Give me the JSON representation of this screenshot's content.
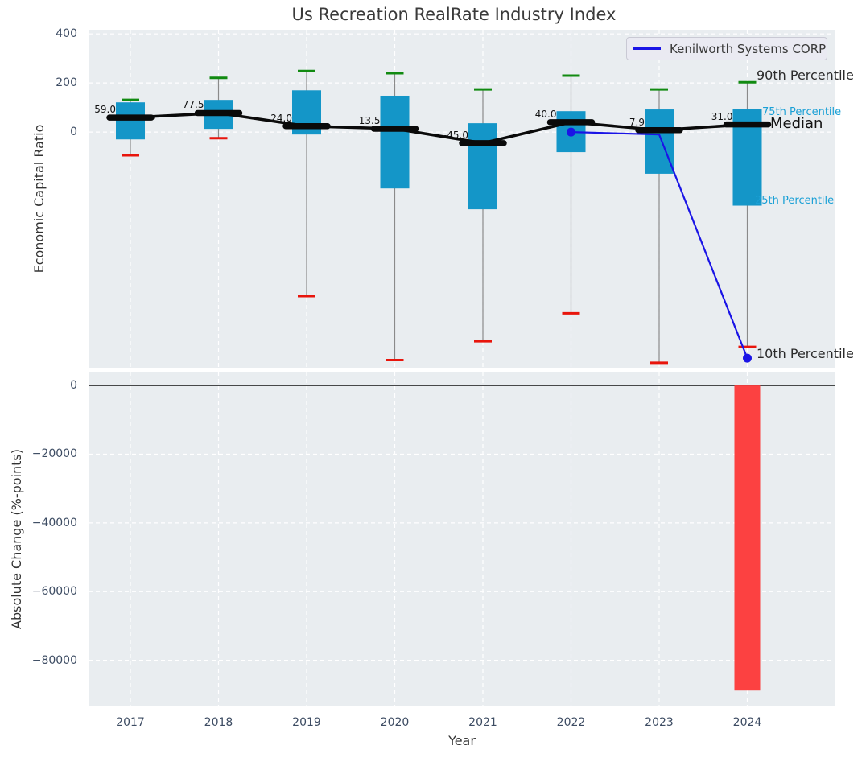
{
  "figure": {
    "title": "Us Recreation RealRate Industry Index",
    "background": "#ffffff",
    "panel_background": "#e9edf0",
    "gridline_color": "#ffffff"
  },
  "legend": {
    "label": "Kenilworth Systems CORP",
    "line_color": "#1a14e6",
    "position": "upper right"
  },
  "axes": {
    "top": {
      "ylabel": "Economic Capital Ratio"
    },
    "bottom": {
      "ylabel": "Absolute Change (%-points)",
      "xlabel": "Year"
    }
  },
  "annotations": {
    "p90": {
      "text": "90th Percentile",
      "color": "#2b2b2b"
    },
    "p75": {
      "text": "75th Percentile",
      "color": "#1aa0d6"
    },
    "median": {
      "text": "Median",
      "color": "#111111"
    },
    "p25": {
      "text": "25th Percentile",
      "color": "#1aa0d6"
    },
    "p10": {
      "text": "10th Percentile",
      "color": "#2b2b2b"
    }
  },
  "chart_data": [
    {
      "type": "boxplot",
      "title": "Us Recreation RealRate Industry Index",
      "xlabel": "Year",
      "ylabel": "Economic Capital Ratio",
      "x": [
        2017,
        2018,
        2019,
        2020,
        2021,
        2022,
        2023,
        2024
      ],
      "ylim": [
        -961,
        417
      ],
      "yticks": [
        {
          "value": 400,
          "label": "400"
        },
        {
          "value": 200,
          "label": "200"
        },
        {
          "value": 0,
          "label": "0"
        }
      ],
      "grid": true,
      "series": [
        {
          "name": "90th Percentile",
          "values": [
            131,
            221,
            249,
            240,
            174,
            230,
            174,
            203
          ]
        },
        {
          "name": "75th Percentile",
          "values": [
            121,
            131,
            170,
            148,
            36,
            85,
            92,
            95
          ]
        },
        {
          "name": "Median",
          "values": [
            59.0,
            77.5,
            24.0,
            13.5,
            -45.0,
            40.0,
            7.9,
            31.0
          ]
        },
        {
          "name": "25th Percentile",
          "values": [
            -30,
            13,
            -10,
            -230,
            -315,
            -82,
            -170,
            -300
          ]
        },
        {
          "name": "10th Percentile",
          "values": [
            -95,
            -25,
            -669,
            -930,
            -853,
            -739,
            -941,
            -876
          ]
        }
      ],
      "median_labels": [
        "59.0",
        "77.5",
        "24.0",
        "13.5",
        "-45.0",
        "40.0",
        "7.9",
        "31.0"
      ],
      "company_line": {
        "name": "Kenilworth Systems CORP",
        "x": [
          2022,
          2023,
          2024
        ],
        "values": [
          0,
          -10,
          -922
        ],
        "marker_x": [
          2022,
          2024
        ],
        "color": "#1a14e6"
      },
      "colors": {
        "box": "#1496c8",
        "whisker": "#8a8a8a",
        "cap_90th": "#118a11",
        "cap_10th": "#e8150c",
        "median": "#0a0a0a"
      },
      "legend_position": "upper right"
    },
    {
      "type": "bar",
      "ylabel": "Absolute Change (%-points)",
      "xlabel": "Year",
      "categories": [
        2017,
        2018,
        2019,
        2020,
        2021,
        2022,
        2023,
        2024
      ],
      "values": [
        0,
        0,
        0,
        0,
        0,
        0,
        0,
        -88800
      ],
      "ylim": [
        -93200,
        4000
      ],
      "yticks": [
        {
          "value": 0,
          "label": "0"
        },
        {
          "value": -20000,
          "label": "−20000"
        },
        {
          "value": -40000,
          "label": "−40000"
        },
        {
          "value": -60000,
          "label": "−60000"
        },
        {
          "value": -80000,
          "label": "−80000"
        }
      ],
      "xtick_labels": [
        "2017",
        "2018",
        "2019",
        "2020",
        "2021",
        "2022",
        "2023",
        "2024"
      ],
      "bar_color": "#fc4141",
      "zero_line_color": "#111111",
      "grid": true
    }
  ]
}
